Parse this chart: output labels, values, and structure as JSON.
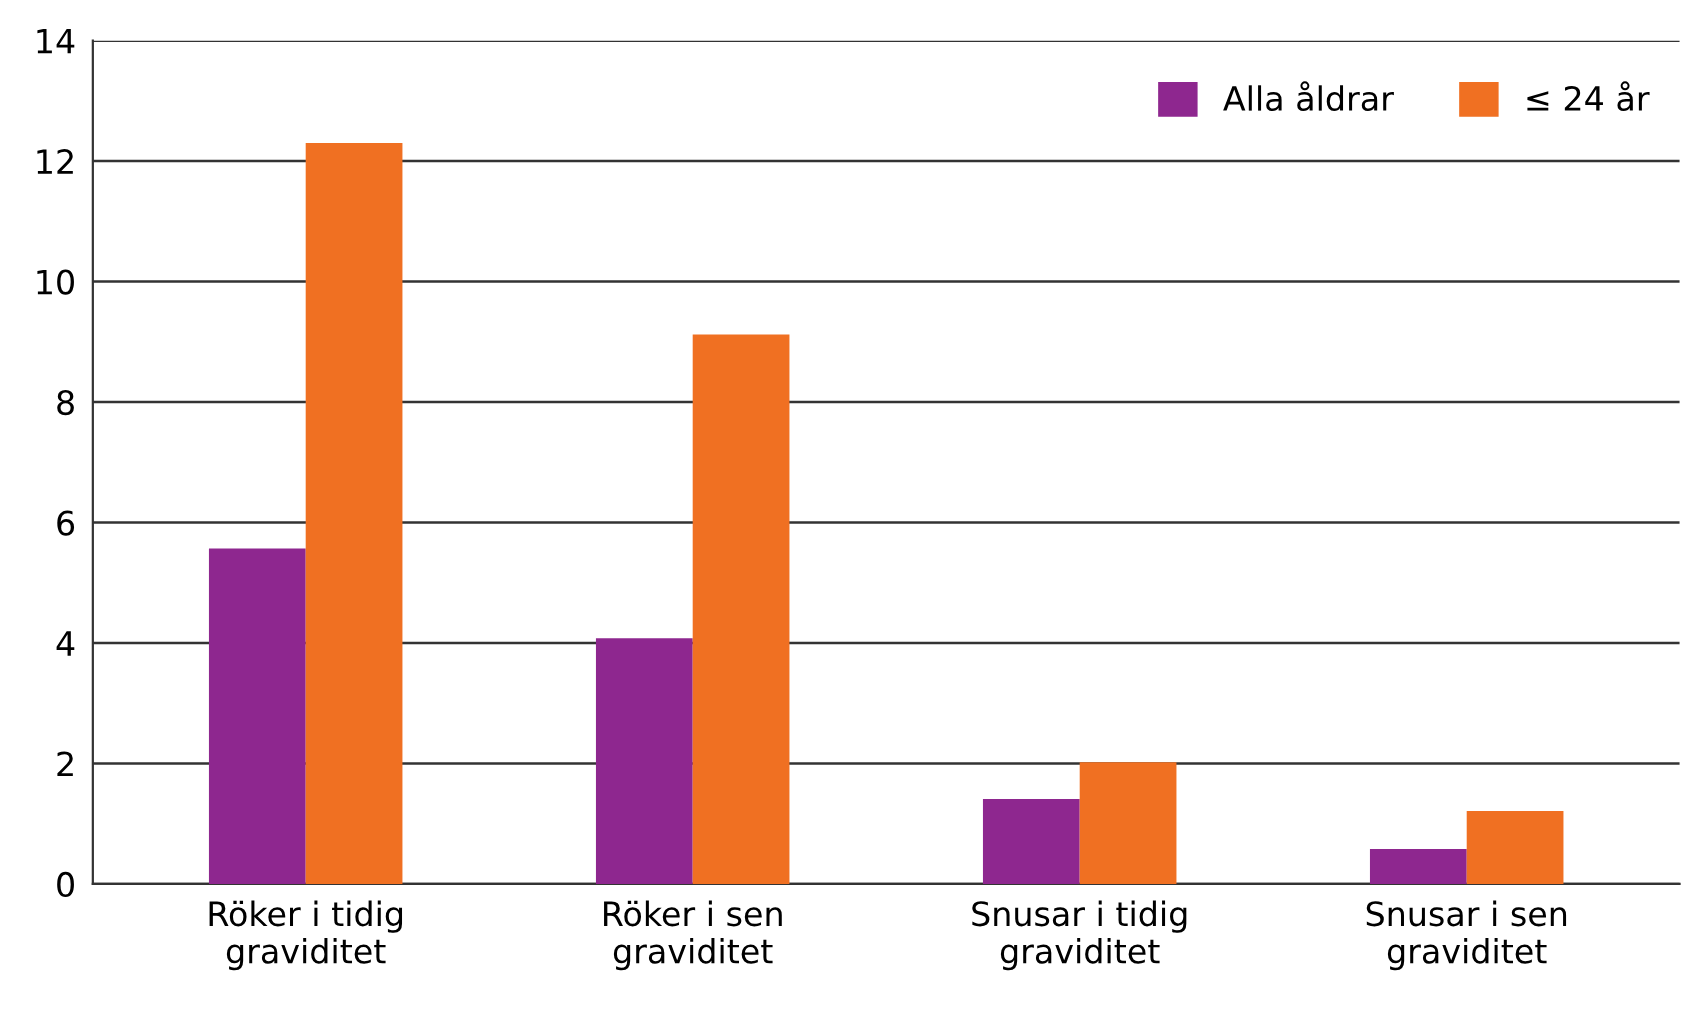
{
  "chart_data": {
    "type": "bar",
    "categories": [
      "Röker i tidig\ngraviditet",
      "Röker i sen\ngraviditet",
      "Snusar i tidig\ngraviditet",
      "Snusar i sen\ngraviditet"
    ],
    "series": [
      {
        "name": "Alla åldrar",
        "color": "#8e278f",
        "values": [
          5.57,
          4.08,
          1.41,
          0.58
        ]
      },
      {
        "name": "≤ 24 år",
        "color": "#f07022",
        "values": [
          12.3,
          9.12,
          2.02,
          1.21
        ]
      }
    ],
    "ylim": [
      0,
      14
    ],
    "yticks": [
      0,
      2,
      4,
      6,
      8,
      10,
      12,
      14
    ],
    "grid": "y",
    "legend": "top right"
  }
}
